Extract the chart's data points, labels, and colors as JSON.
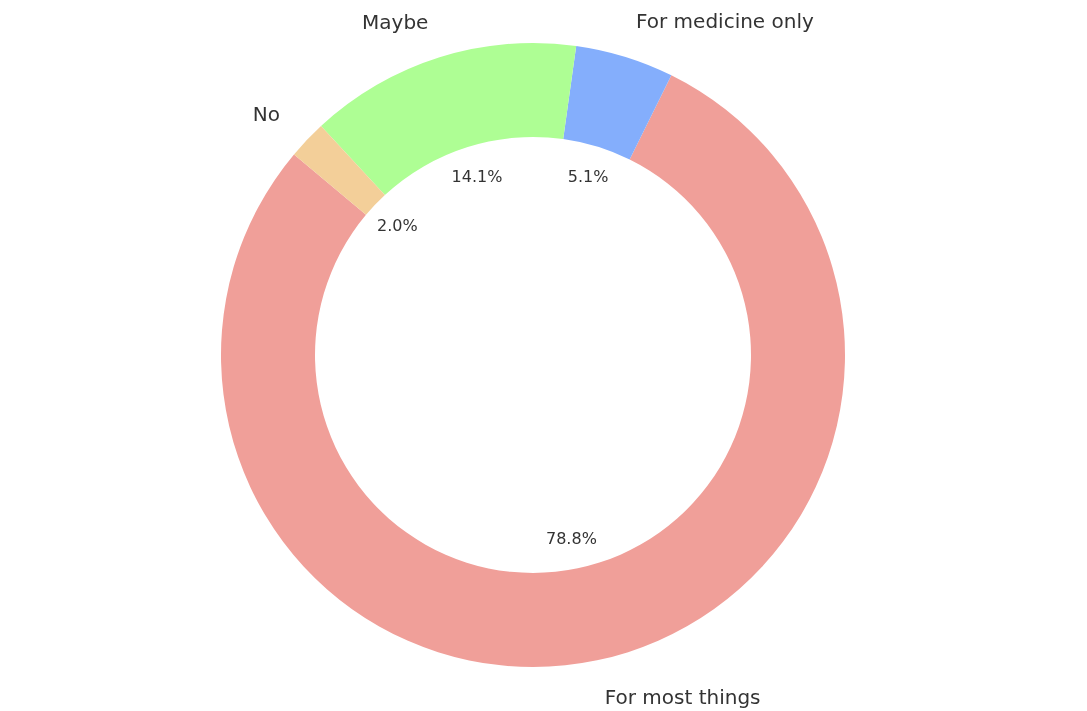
{
  "chart_data": {
    "type": "donut",
    "categories": [
      "For most things",
      "For medicine only",
      "Maybe",
      "No"
    ],
    "values": [
      78.8,
      5.1,
      14.1,
      2.0
    ],
    "value_labels": [
      "78.8%",
      "5.1%",
      "14.1%",
      "2.0%"
    ],
    "colors": [
      "#f09f99",
      "#84aefc",
      "#aefe94",
      "#f3cf99"
    ],
    "legend": false
  }
}
